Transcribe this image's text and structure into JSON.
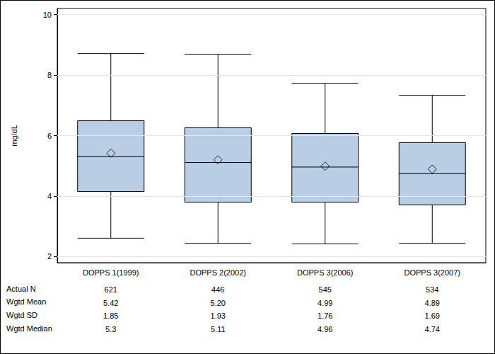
{
  "chart_data": {
    "type": "boxplot",
    "y_label": "mg/dL",
    "categories": [
      "DOPPS 1(1999)",
      "DOPPS 2(2002)",
      "DOPPS 3(2006)",
      "DOPPS 3(2007)"
    ],
    "boxes": [
      [
        2.61,
        4.15,
        5.3,
        6.49,
        8.71
      ],
      [
        2.44,
        3.8,
        5.11,
        6.26,
        8.69
      ],
      [
        2.42,
        3.8,
        4.96,
        6.07,
        7.73
      ],
      [
        2.44,
        3.71,
        4.74,
        5.77,
        7.33
      ]
    ],
    "means": [
      5.42,
      5.2,
      4.99,
      4.89
    ],
    "color": "#b9cde5",
    "marker": "diamond",
    "ylim": [
      1.8,
      10.2
    ],
    "yticks": [
      2,
      4,
      6,
      8,
      10
    ],
    "grid": true,
    "table": {
      "rows": [
        {
          "label": "Actual N",
          "cells": [
            "621",
            "446",
            "545",
            "534"
          ]
        },
        {
          "label": "Wgtd Mean",
          "cells": [
            "5.42",
            "5.20",
            "4.99",
            "4.89"
          ]
        },
        {
          "label": "Wgtd SD",
          "cells": [
            "1.85",
            "1.93",
            "1.76",
            "1.69"
          ]
        },
        {
          "label": "Wgtd Median",
          "cells": [
            "5.3",
            "5.11",
            "4.96",
            "4.74"
          ]
        }
      ]
    }
  }
}
